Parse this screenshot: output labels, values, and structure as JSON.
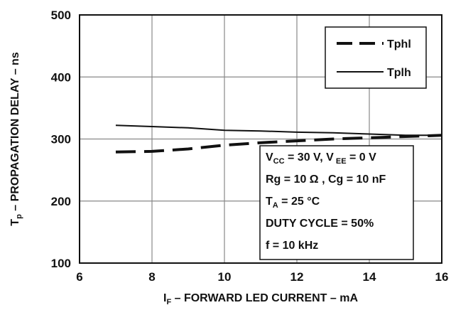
{
  "chart_data": {
    "type": "line",
    "xlabel": {
      "main": "I",
      "sub": "F",
      "rest": " – FORWARD LED CURRENT – mA"
    },
    "ylabel": {
      "main": "T",
      "sub": "p",
      "rest": " – PROPAGATION DELAY – ns"
    },
    "xlim": [
      6,
      16
    ],
    "ylim": [
      100,
      500
    ],
    "xticks": [
      6,
      8,
      10,
      12,
      14,
      16
    ],
    "yticks": [
      100,
      200,
      300,
      400,
      500
    ],
    "grid": true,
    "legend_position": "top-right",
    "series": [
      {
        "name": "Tphl",
        "style": "dashed",
        "x": [
          7,
          8,
          9,
          10,
          11,
          12,
          13,
          14,
          15,
          16
        ],
        "y": [
          279,
          280,
          284,
          290,
          294,
          297,
          300,
          302,
          304,
          306
        ]
      },
      {
        "name": "Tplh",
        "style": "solid",
        "x": [
          7,
          8,
          9,
          10,
          11,
          12,
          13,
          14,
          15,
          16
        ],
        "y": [
          322,
          320,
          318,
          314,
          313,
          311,
          310,
          308,
          306,
          306
        ]
      }
    ],
    "conditions": [
      [
        {
          "t": "V"
        },
        {
          "t": "CC",
          "sub": true
        },
        {
          "t": " = 30 V, V"
        },
        {
          "t": " EE",
          "sub": true
        },
        {
          "t": " = 0 V"
        }
      ],
      [
        {
          "t": "Rg = 10 Ω , Cg = 10 nF"
        }
      ],
      [
        {
          "t": "T"
        },
        {
          "t": "A",
          "sub": true
        },
        {
          "t": " = 25 °C"
        }
      ],
      [
        {
          "t": "DUTY CYCLE = 50%"
        }
      ],
      [
        {
          "t": "f = 10 kHz"
        }
      ]
    ]
  }
}
